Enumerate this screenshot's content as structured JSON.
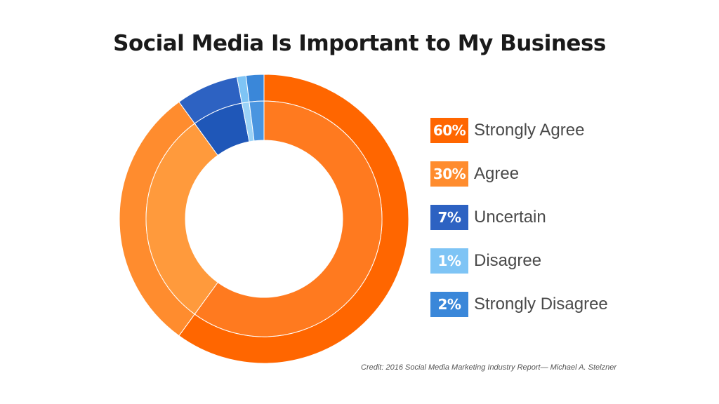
{
  "chart_data": {
    "type": "pie",
    "title": "Social Media Is Important to My Business",
    "categories": [
      "Strongly Agree",
      "Agree",
      "Uncertain",
      "Disagree",
      "Strongly Disagree"
    ],
    "values": [
      60,
      30,
      7,
      1,
      2
    ],
    "value_labels": [
      "60%",
      "30%",
      "7%",
      "1%",
      "2%"
    ],
    "colors": [
      "#ff6600",
      "#ff8c2e",
      "#2d62c2",
      "#7ec4f5",
      "#3a87d9"
    ],
    "inner_colors": [
      "#ff7a1f",
      "#ff9a3c",
      "#1f57b8",
      "#9ad2f7",
      "#4a95e0"
    ],
    "donut": true,
    "legend_position": "right",
    "credit": "Credit: 2016 Social Media Marketing Industry Report— Michael A. Stelzner"
  }
}
